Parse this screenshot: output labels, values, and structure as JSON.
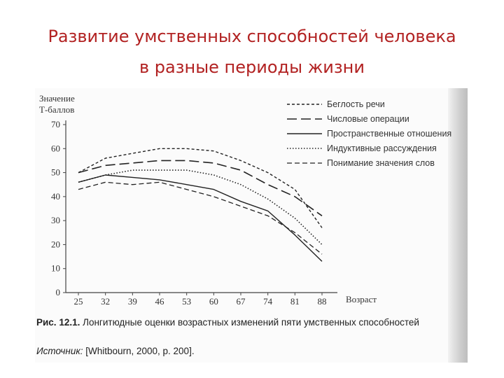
{
  "slide": {
    "title_line1": "Развитие умственных способностей человека",
    "title_line2": "в разные периоды жизни"
  },
  "caption": {
    "figure_label": "Рис. 12.1.",
    "text": "Лонгитюдные оценки возрастных изменений пяти умственных способностей",
    "source_label": "Источник:",
    "source_text": "[Whitbourn, 2000, p. 200]."
  },
  "chart_data": {
    "type": "line",
    "ylabel_line1": "Значение",
    "ylabel_line2": "Т-баллов",
    "xlabel": "Возраст",
    "ylim": [
      0,
      70
    ],
    "y_ticks": [
      "70",
      "60",
      "50",
      "40",
      "30",
      "20",
      "10",
      "0"
    ],
    "categories": [
      "25",
      "32",
      "39",
      "46",
      "53",
      "60",
      "67",
      "74",
      "81",
      "88"
    ],
    "x": [
      25,
      32,
      39,
      46,
      53,
      60,
      67,
      74,
      81,
      88
    ],
    "legend_position": "top-right",
    "grid": false,
    "series": [
      {
        "name": "Беглость речи",
        "dash": "short-dash",
        "values": [
          50,
          56,
          58,
          60,
          60,
          59,
          55,
          50,
          43,
          27
        ]
      },
      {
        "name": "Числовые операции",
        "dash": "long-dash",
        "values": [
          50,
          53,
          54,
          55,
          55,
          54,
          51,
          45,
          40,
          32
        ]
      },
      {
        "name": "Пространственные отношения",
        "dash": "solid",
        "values": [
          46,
          49,
          48,
          47,
          45,
          43,
          38,
          34,
          24,
          13
        ]
      },
      {
        "name": "Индуктивные рассуждения",
        "dash": "dotted",
        "values": [
          46,
          49,
          51,
          51,
          51,
          49,
          45,
          39,
          31,
          20
        ]
      },
      {
        "name": "Понимание значения слов",
        "dash": "medium-dash",
        "values": [
          43,
          46,
          45,
          46,
          43,
          40,
          36,
          32,
          25,
          16
        ]
      }
    ]
  }
}
